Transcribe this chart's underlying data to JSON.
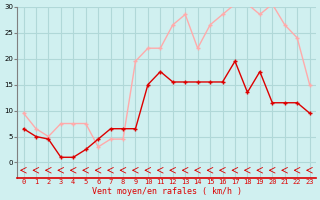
{
  "hours": [
    0,
    1,
    2,
    3,
    4,
    5,
    6,
    7,
    8,
    9,
    10,
    11,
    12,
    13,
    14,
    15,
    16,
    17,
    18,
    19,
    20,
    21,
    22,
    23
  ],
  "wind_avg": [
    6.5,
    5.0,
    4.5,
    1.0,
    1.0,
    2.5,
    4.5,
    6.5,
    6.5,
    6.5,
    15.0,
    17.5,
    15.5,
    15.5,
    15.5,
    15.5,
    15.5,
    19.5,
    13.5,
    17.5,
    11.5,
    11.5,
    11.5,
    9.5
  ],
  "wind_gust": [
    9.5,
    6.5,
    5.0,
    7.5,
    7.5,
    7.5,
    3.0,
    4.5,
    4.5,
    19.5,
    22.0,
    22.0,
    26.5,
    28.5,
    22.0,
    26.5,
    28.5,
    30.5,
    30.5,
    28.5,
    30.5,
    26.5,
    24.0,
    15.0
  ],
  "ylim": [
    0,
    30
  ],
  "yticks": [
    0,
    5,
    10,
    15,
    20,
    25,
    30
  ],
  "xlabel": "Vent moyen/en rafales ( km/h )",
  "bg_color": "#d0f0f0",
  "grid_color": "#b0d8d8",
  "avg_color": "#dd0000",
  "gust_color": "#ffaaaa",
  "line_width": 1.0,
  "marker_size": 3
}
